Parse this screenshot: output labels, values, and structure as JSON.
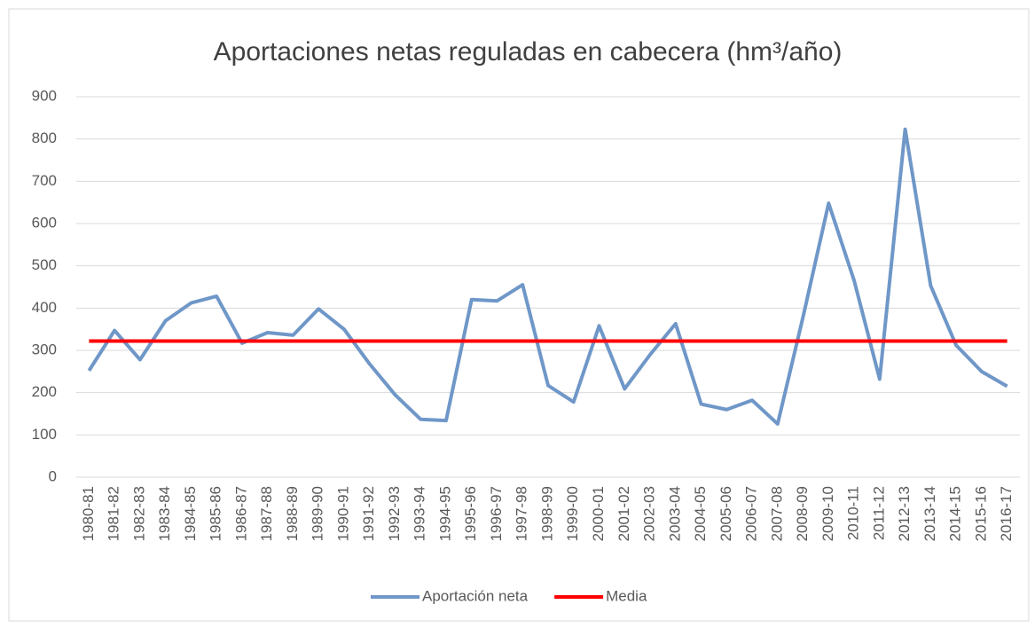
{
  "chart_data": {
    "type": "line",
    "title": "Aportaciones netas reguladas en cabecera (hm³/año)",
    "categories": [
      "1980-81",
      "1981-82",
      "1982-83",
      "1983-84",
      "1984-85",
      "1985-86",
      "1986-87",
      "1987-88",
      "1988-89",
      "1989-90",
      "1990-91",
      "1991-92",
      "1992-93",
      "1993-94",
      "1994-95",
      "1995-96",
      "1996-97",
      "1997-98",
      "1998-99",
      "1999-00",
      "2000-01",
      "2001-02",
      "2002-03",
      "2003-04",
      "2004-05",
      "2005-06",
      "2006-07",
      "2007-08",
      "2008-09",
      "2009-10",
      "2010-11",
      "2011-12",
      "2012-13",
      "2013-14",
      "2014-15",
      "2015-16",
      "2016-17"
    ],
    "series": [
      {
        "name": "Aportación neta",
        "color": "#6f97c8",
        "values": [
          252,
          347,
          278,
          370,
          412,
          428,
          317,
          342,
          336,
          398,
          350,
          268,
          195,
          137,
          134,
          420,
          417,
          455,
          217,
          178,
          358,
          209,
          290,
          363,
          173,
          160,
          182,
          126,
          380,
          648,
          465,
          232,
          823,
          453,
          312,
          250,
          215
        ]
      },
      {
        "name": "Media",
        "color": "#ff0000",
        "values": [
          322,
          322,
          322,
          322,
          322,
          322,
          322,
          322,
          322,
          322,
          322,
          322,
          322,
          322,
          322,
          322,
          322,
          322,
          322,
          322,
          322,
          322,
          322,
          322,
          322,
          322,
          322,
          322,
          322,
          322,
          322,
          322,
          322,
          322,
          322,
          322,
          322
        ]
      }
    ],
    "ylim": [
      0,
      900
    ],
    "yticks": [
      0,
      100,
      200,
      300,
      400,
      500,
      600,
      700,
      800,
      900
    ],
    "grid": true,
    "legend": "bottom"
  }
}
